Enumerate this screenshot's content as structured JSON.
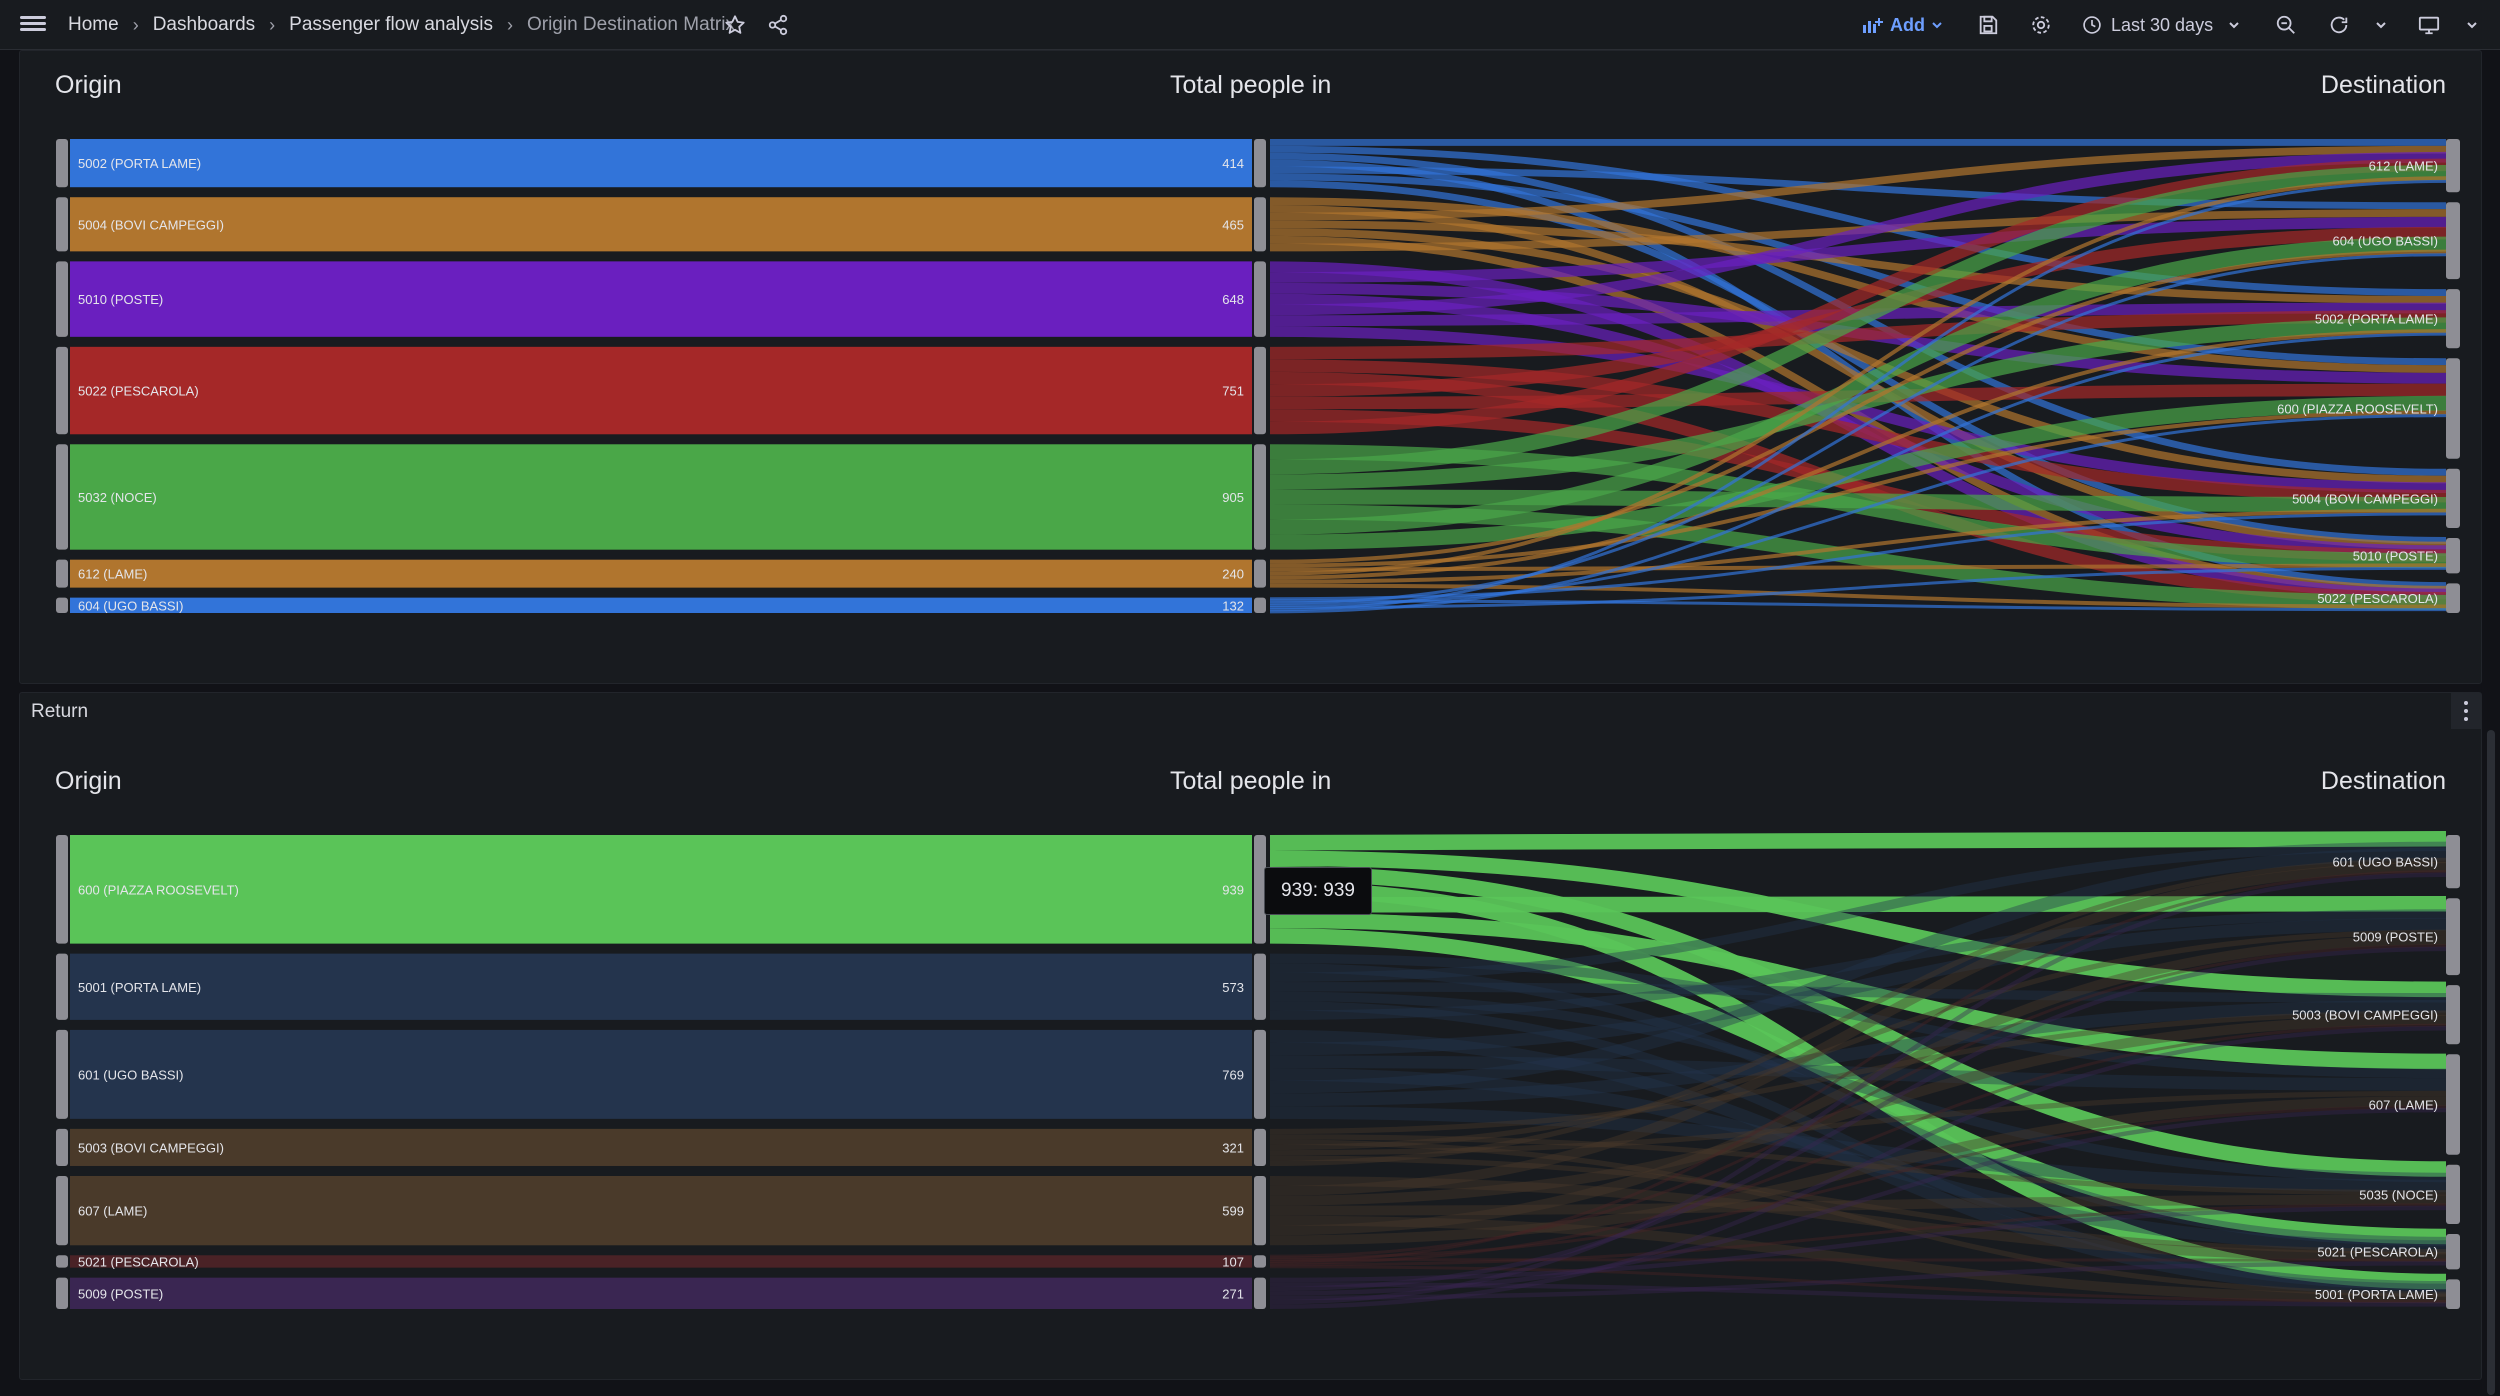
{
  "nav": {
    "breadcrumbs": [
      "Home",
      "Dashboards",
      "Passenger flow analysis",
      "Origin Destination Matrix"
    ],
    "separator": "›",
    "add_label": "Add",
    "time_range": "Last 30 days"
  },
  "icons": [
    "menu-icon",
    "star-icon",
    "share-icon",
    "add-panel-icon",
    "chevron-down-icon",
    "save-icon",
    "gear-icon",
    "clock-icon",
    "zoom-out-icon",
    "refresh-icon",
    "tv-icon"
  ],
  "colors": {
    "blue": "#3274d9",
    "orange": "#b0752e",
    "purple": "#6a1fbf",
    "red": "#a52828",
    "green": "#4aa748",
    "bright_green": "#5ac458",
    "navy": "#24344d",
    "brown": "#4a3a2a",
    "maroon": "#4a2226",
    "violet": "#3a2652"
  },
  "panels": [
    {
      "title": "",
      "origin_label": "Origin",
      "total_label": "Total people in",
      "destination_label": "Destination",
      "origins": [
        {
          "name": "5002 (PORTA LAME)",
          "value": 414,
          "color": "#3274d9"
        },
        {
          "name": "5004 (BOVI CAMPEGGI)",
          "value": 465,
          "color": "#b0752e"
        },
        {
          "name": "5010 (POSTE)",
          "value": 648,
          "color": "#6a1fbf"
        },
        {
          "name": "5022 (PESCAROLA)",
          "value": 751,
          "color": "#a52828"
        },
        {
          "name": "5032 (NOCE)",
          "value": 905,
          "color": "#4aa748"
        },
        {
          "name": "612 (LAME)",
          "value": 240,
          "color": "#b0752e"
        },
        {
          "name": "604 (UGO BASSI)",
          "value": 132,
          "color": "#3274d9"
        }
      ],
      "destinations": [
        {
          "name": "612 (LAME)"
        },
        {
          "name": "604 (UGO BASSI)"
        },
        {
          "name": "5002 (PORTA LAME)"
        },
        {
          "name": "600 (PIAZZA ROOSEVELT)"
        },
        {
          "name": "5004 (BOVI CAMPEGGI)"
        },
        {
          "name": "5010 (POSTE)"
        },
        {
          "name": "5022 (PESCAROLA)"
        }
      ]
    },
    {
      "title": "Return",
      "origin_label": "Origin",
      "total_label": "Total people in",
      "destination_label": "Destination",
      "origins": [
        {
          "name": "600 (PIAZZA ROOSEVELT)",
          "value": 939,
          "color": "#5ac458"
        },
        {
          "name": "5001 (PORTA LAME)",
          "value": 573,
          "color": "#24344d"
        },
        {
          "name": "601 (UGO BASSI)",
          "value": 769,
          "color": "#24344d"
        },
        {
          "name": "5003 (BOVI CAMPEGGI)",
          "value": 321,
          "color": "#4a3a2a"
        },
        {
          "name": "607 (LAME)",
          "value": 599,
          "color": "#4a3a2a"
        },
        {
          "name": "5021 (PESCAROLA)",
          "value": 107,
          "color": "#4a2226"
        },
        {
          "name": "5009 (POSTE)",
          "value": 271,
          "color": "#3a2652"
        }
      ],
      "destinations": [
        {
          "name": "601 (UGO BASSI)"
        },
        {
          "name": "5009 (POSTE)"
        },
        {
          "name": "5003 (BOVI CAMPEGGI)"
        },
        {
          "name": "607 (LAME)"
        },
        {
          "name": "5035 (NOCE)"
        },
        {
          "name": "5021 (PESCAROLA)"
        },
        {
          "name": "5001 (PORTA LAME)"
        }
      ],
      "tooltip": "939: 939"
    }
  ]
}
